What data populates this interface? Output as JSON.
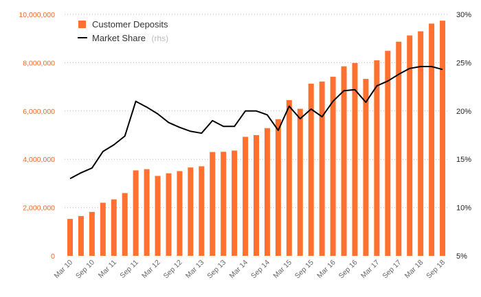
{
  "chart_data": {
    "type": "bar+line",
    "title": "",
    "categories": [
      "Mar 10",
      "Jun 10",
      "Sep 10",
      "Dec 10",
      "Mar 11",
      "Jun 11",
      "Sep 11",
      "Dec 11",
      "Mar 12",
      "Jun 12",
      "Sep 12",
      "Dec 12",
      "Mar 13",
      "Jun 13",
      "Sep 13",
      "Dec 13",
      "Mar 14",
      "Jun 14",
      "Sep 14",
      "Dec 14",
      "Mar 15",
      "Jun 15",
      "Sep 15",
      "Dec 15",
      "Mar 16",
      "Jun 16",
      "Sep 16",
      "Dec 16",
      "Mar 17",
      "Jun 17",
      "Sep 17",
      "Dec 17",
      "Mar 18",
      "Jun 18",
      "Sep 18"
    ],
    "x_tick_labels": [
      "Mar 10",
      "Sep 10",
      "Mar 11",
      "Sep 11",
      "Mar 12",
      "Sep 12",
      "Mar 13",
      "Sep 13",
      "Mar 14",
      "Sep 14",
      "Mar 15",
      "Sep 15",
      "Mar 16",
      "Sep 16",
      "Mar 17",
      "Sep 17",
      "Mar 18",
      "Sep 18"
    ],
    "series": [
      {
        "name": "Customer Deposits",
        "type": "bar",
        "axis": "left",
        "color": "#ff7130",
        "values": [
          1530000,
          1650000,
          1820000,
          2200000,
          2340000,
          2600000,
          3540000,
          3590000,
          3310000,
          3420000,
          3510000,
          3660000,
          3710000,
          4300000,
          4310000,
          4360000,
          4930000,
          5000000,
          5290000,
          5660000,
          6450000,
          6090000,
          7130000,
          7220000,
          7420000,
          7850000,
          7990000,
          7330000,
          8100000,
          8490000,
          8870000,
          9130000,
          9300000,
          9620000,
          9740000
        ]
      },
      {
        "name": "Market Share",
        "name_suffix": "(rhs)",
        "type": "line",
        "axis": "right",
        "color": "#000000",
        "values": [
          13.0,
          13.6,
          14.1,
          15.8,
          16.5,
          17.4,
          21.0,
          20.4,
          19.7,
          18.8,
          18.3,
          17.9,
          17.7,
          19.0,
          18.4,
          18.4,
          20.0,
          20.0,
          19.6,
          18.0,
          20.5,
          19.2,
          20.2,
          19.4,
          21.0,
          22.1,
          22.2,
          20.9,
          22.6,
          23.1,
          23.8,
          24.4,
          24.6,
          24.6,
          24.3
        ]
      }
    ],
    "y_left": {
      "ylim": [
        0,
        10000000
      ],
      "ticks": [
        0,
        2000000,
        4000000,
        6000000,
        8000000,
        10000000
      ],
      "tick_labels": [
        "0",
        "2,000,000",
        "4,000,000",
        "6,000,000",
        "8,000,000",
        "10,000,000"
      ],
      "color": "#f26522"
    },
    "y_right": {
      "ylim": [
        5,
        30
      ],
      "ticks": [
        5,
        10,
        15,
        20,
        25,
        30
      ],
      "tick_labels": [
        "5%",
        "10%",
        "15%",
        "20%",
        "25%",
        "30%"
      ]
    },
    "grid": "horizontal-dotted",
    "legend": {
      "placement": "top-left",
      "items": [
        {
          "label": "Customer Deposits",
          "suffix": ""
        },
        {
          "label": "Market Share",
          "suffix": "(rhs)"
        }
      ]
    }
  }
}
